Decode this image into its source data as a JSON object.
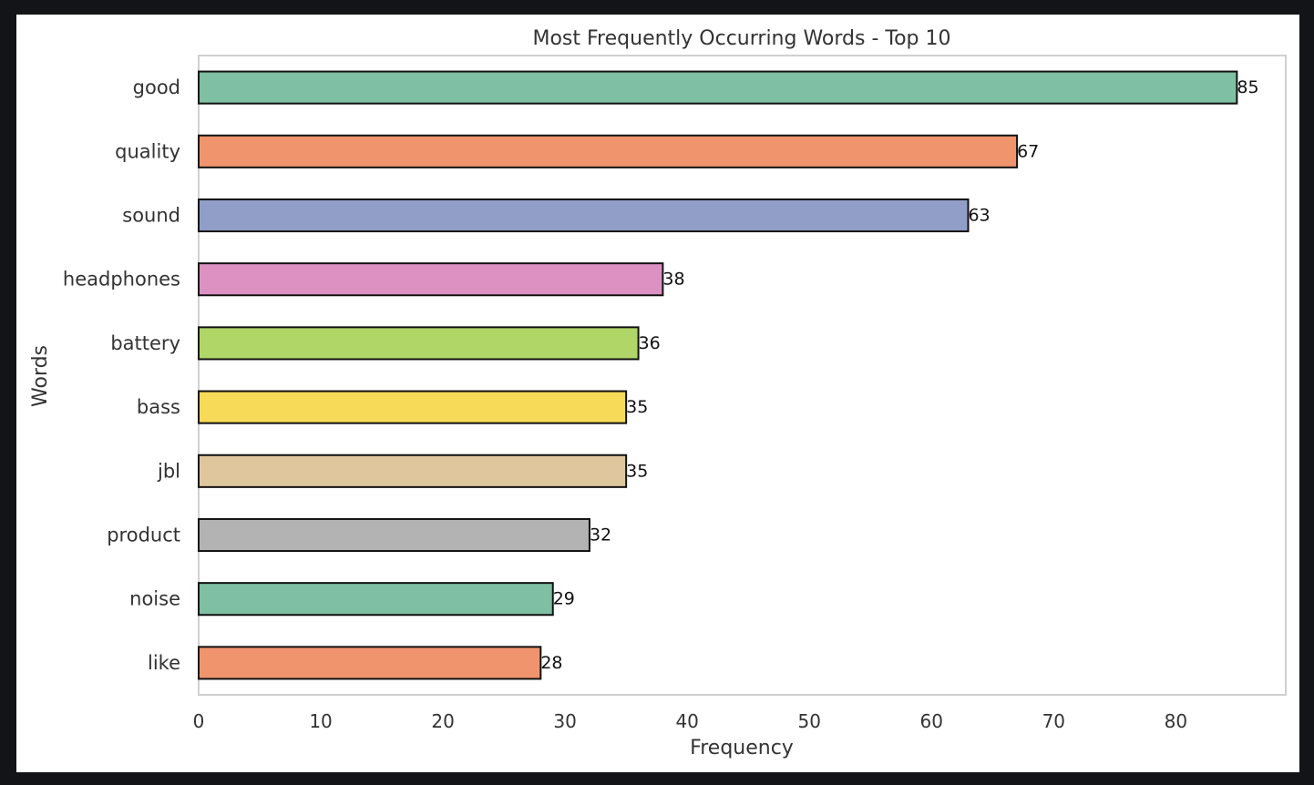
{
  "chart_data": {
    "type": "bar",
    "orientation": "horizontal",
    "title": "Most Frequently Occurring Words - Top 10",
    "xlabel": "Frequency",
    "ylabel": "Words",
    "xlim": [
      0,
      89
    ],
    "xticks": [
      0,
      10,
      20,
      30,
      40,
      50,
      60,
      70,
      80
    ],
    "grid": false,
    "categories": [
      "good",
      "quality",
      "sound",
      "headphones",
      "battery",
      "bass",
      "jbl",
      "product",
      "noise",
      "like"
    ],
    "values": [
      85,
      67,
      63,
      38,
      36,
      35,
      35,
      32,
      29,
      28
    ],
    "colors": [
      "#7fbfa3",
      "#ef946c",
      "#919fc8",
      "#dc91c2",
      "#b0d667",
      "#f7da57",
      "#dfc69d",
      "#b3b3b3",
      "#7fbfa3",
      "#ef946c"
    ],
    "data_labels": [
      "85",
      "67",
      "63",
      "38",
      "36",
      "35",
      "35",
      "32",
      "29",
      "28"
    ]
  }
}
